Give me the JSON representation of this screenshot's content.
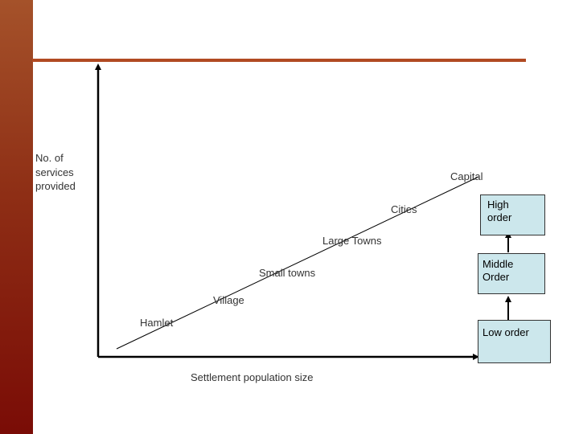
{
  "diagram": {
    "y_axis_label": "No. of\nservices\nprovided",
    "x_axis_label": "Settlement population size",
    "settlements": {
      "capital": "Capital",
      "cities": "Cities",
      "large_towns": "Large Towns",
      "small_towns": "Small towns",
      "village": "Village",
      "hamlet": "Hamlet"
    },
    "order_boxes": {
      "high": "High\norder",
      "middle": "Middle\nOrder",
      "low": "Low order"
    }
  },
  "colors": {
    "sidebar": "#8e2e15",
    "rule": "#b14a22",
    "box_fill": "#cce7ec",
    "line": "#000000"
  }
}
